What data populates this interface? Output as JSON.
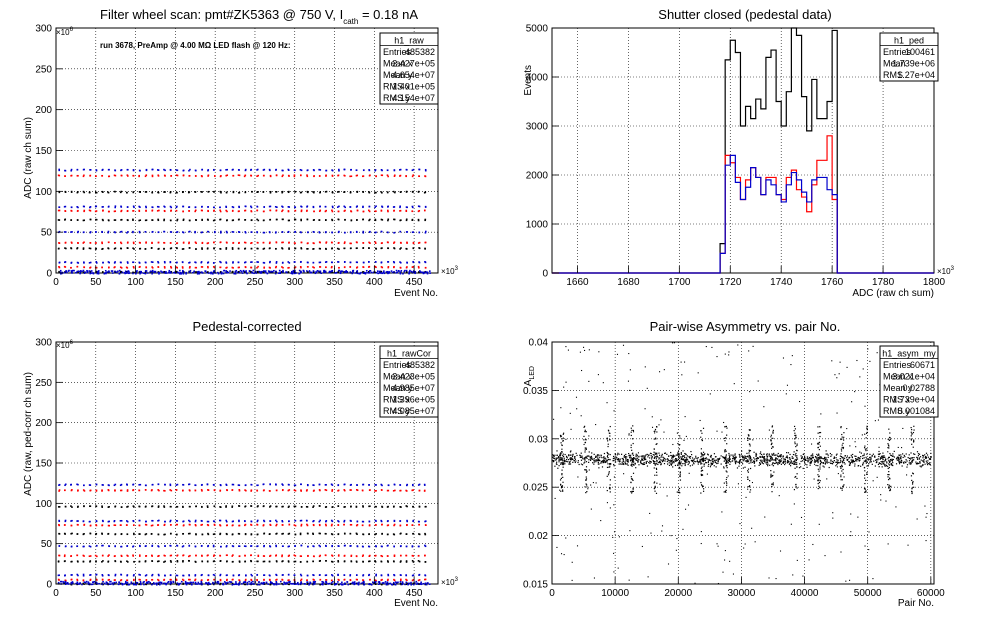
{
  "chart_data": [
    {
      "type": "scatter",
      "title_main": "Filter wheel scan: pmt#ZK5363 @   750 V, I",
      "title_sub": "cath",
      "title_tail": " = 0.18 nA",
      "annotation": "run 3678, PreAmp @ 4.00 MΩ LED flash @  120 Hz:",
      "xlabel": "Event No.",
      "ylabel": "ADC (raw ch sum)",
      "x_multiplier": "×10",
      "x_multiplier_exp": "3",
      "y_multiplier": "×10",
      "y_multiplier_exp": "6",
      "xlim": [
        0,
        480
      ],
      "ylim": [
        0,
        300
      ],
      "x_ticks": [
        "0",
        "50",
        "100",
        "150",
        "200",
        "250",
        "300",
        "350",
        "400",
        "450"
      ],
      "y_ticks": [
        "0",
        "50",
        "100",
        "150",
        "200",
        "250",
        "300"
      ],
      "stats": {
        "name": "h1_raw",
        "rows": [
          [
            "Entries",
            "485382"
          ],
          [
            "Mean x",
            "2.427e+05"
          ],
          [
            "Mean y",
            "4.654e+07"
          ],
          [
            "RMS x",
            "1.401e+05"
          ],
          [
            "RMS y",
            "4.154e+07"
          ]
        ]
      },
      "levels": [
        127,
        120,
        100,
        82,
        77,
        66,
        51,
        38,
        31,
        14,
        8,
        2
      ],
      "grid": true
    },
    {
      "type": "line",
      "title": "Shutter closed (pedestal data)",
      "xlabel": "ADC (raw ch sum)",
      "ylabel": "Events",
      "x_multiplier": "×10",
      "x_multiplier_exp": "3",
      "xlim": [
        1650,
        1800
      ],
      "ylim": [
        0,
        5000
      ],
      "x_ticks": [
        "1660",
        "1680",
        "1700",
        "1720",
        "1740",
        "1760",
        "1780",
        "1800"
      ],
      "y_ticks": [
        "0",
        "1000",
        "2000",
        "3000",
        "4000",
        "5000"
      ],
      "stats": {
        "name": "h1_ped",
        "rows": [
          [
            "Entries",
            "100461"
          ],
          [
            "Mean",
            "1.739e+06"
          ],
          [
            "RMS",
            "1.27e+04"
          ]
        ]
      },
      "bin_edges": [
        1716,
        1718,
        1720,
        1722,
        1724,
        1726,
        1728,
        1730,
        1732,
        1734,
        1736,
        1738,
        1740,
        1742,
        1744,
        1746,
        1748,
        1750,
        1752,
        1754,
        1756,
        1758,
        1760,
        1762
      ],
      "series": [
        {
          "color": "#000000",
          "values": [
            600,
            4350,
            4750,
            4500,
            3000,
            3400,
            3150,
            3550,
            3350,
            4400,
            4550,
            3500,
            3000,
            3700,
            5000,
            4850,
            3600,
            2900,
            3950,
            3150,
            3150,
            3500,
            4950
          ]
        },
        {
          "color": "#ff0000",
          "values": [
            400,
            2400,
            2250,
            1950,
            1500,
            1900,
            2150,
            1950,
            1600,
            1950,
            1950,
            1600,
            1500,
            1950,
            2100,
            1700,
            1550,
            1250,
            1800,
            2300,
            2300,
            2800,
            1500
          ]
        },
        {
          "color": "#0000cc",
          "values": [
            400,
            2200,
            2400,
            1850,
            1500,
            1750,
            2150,
            1950,
            1600,
            1900,
            1800,
            1600,
            1450,
            1800,
            2050,
            1900,
            1650,
            1450,
            1900,
            1950,
            1950,
            1700,
            1600
          ]
        }
      ],
      "grid": true
    },
    {
      "type": "scatter",
      "title": "Pedestal-corrected",
      "xlabel": "Event No.",
      "ylabel": "ADC (raw, ped-corr ch sum)",
      "x_multiplier": "×10",
      "x_multiplier_exp": "3",
      "y_multiplier": "×10",
      "y_multiplier_exp": "6",
      "xlim": [
        0,
        480
      ],
      "ylim": [
        0,
        300
      ],
      "x_ticks": [
        "0",
        "50",
        "100",
        "150",
        "200",
        "250",
        "300",
        "350",
        "400",
        "450"
      ],
      "y_ticks": [
        "0",
        "50",
        "100",
        "150",
        "200",
        "250",
        "300"
      ],
      "stats": {
        "name": "h1_rawCor",
        "rows": [
          [
            "Entries",
            "485382"
          ],
          [
            "Mean x",
            "2.423e+05"
          ],
          [
            "Mean y",
            "4.985e+07"
          ],
          [
            "RMS x",
            "1.396e+05"
          ],
          [
            "RMS y",
            "4.085e+07"
          ]
        ]
      },
      "levels": [
        124,
        117,
        97,
        79,
        74,
        63,
        48,
        36,
        29,
        12,
        6,
        1
      ],
      "grid": true
    },
    {
      "type": "scatter",
      "title": "Pair-wise Asymmetry vs. pair No.",
      "xlabel": "Pair No.",
      "ylabel": "A",
      "ylabel_sub": "LED",
      "xlim": [
        0,
        60500
      ],
      "ylim": [
        0.015,
        0.04
      ],
      "x_ticks": [
        "0",
        "10000",
        "20000",
        "30000",
        "40000",
        "50000",
        "60000"
      ],
      "y_ticks": [
        "0.015",
        "0.02",
        "0.025",
        "0.03",
        "0.035",
        "0.04"
      ],
      "stats": {
        "name": "h1_asym_my",
        "rows": [
          [
            "Entries",
            "60671"
          ],
          [
            "Mean x",
            "3.021e+04"
          ],
          [
            "Mean y",
            "0.02788"
          ],
          [
            "RMS x",
            "1.739e+04"
          ],
          [
            "RMS y",
            "0.001084"
          ]
        ]
      },
      "band_center": 0.0279,
      "grid": true
    }
  ]
}
